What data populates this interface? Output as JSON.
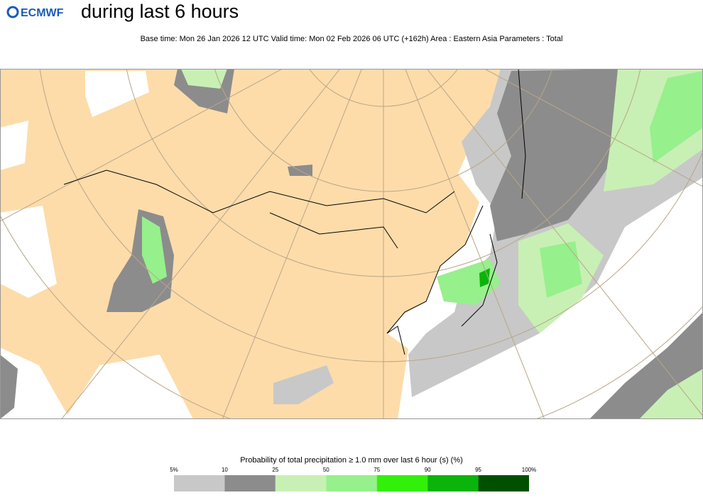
{
  "header": {
    "logo": "ECMWF",
    "title": "during last 6 hours",
    "subtitle": "Base time: Mon 26 Jan 2026 12 UTC Valid time: Mon 02 Feb 2026 06 UTC (+162h) Area : Eastern Asia Parameters : Total"
  },
  "legend": {
    "title": "Probability of total precipitation ≥ 1.0 mm over last 6 hour (s) (%)",
    "labels": [
      "5%",
      "10",
      "25",
      "50",
      "75",
      "90",
      "95",
      "100%"
    ],
    "colors": [
      "#c8c8c8",
      "#8c8c8c",
      "#c8f0b4",
      "#96f08c",
      "#32f00a",
      "#0ab40a",
      "#005000"
    ]
  }
}
